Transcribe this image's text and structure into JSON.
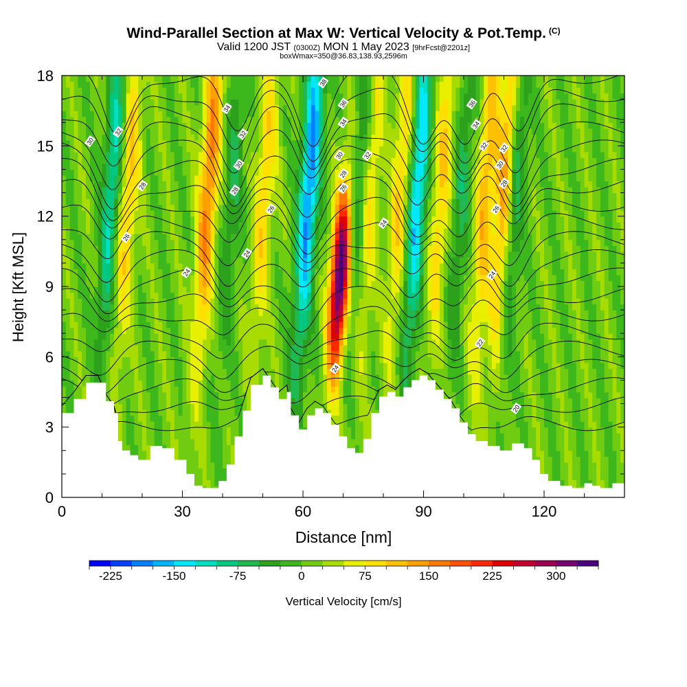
{
  "title": "Wind-Parallel Section at Max W: Vertical Velocity & Pot.Temp.",
  "title_mark": "(C)",
  "subtitle_main_a": "Valid 1200 JST",
  "subtitle_small_a": "(0300Z)",
  "subtitle_main_b": "MON 1 May 2023",
  "subtitle_small_b": "[9hrFcst@2201z]",
  "subtitle2": "boxWmax=350@36.83,138.93,2596m",
  "chart_data": {
    "type": "heatmap",
    "xlabel": "Distance [nm]",
    "ylabel": "Height [Kft MSL]",
    "xlim": [
      0,
      140
    ],
    "ylim": [
      0,
      18
    ],
    "x_ticks": [
      0,
      30,
      60,
      90,
      120
    ],
    "y_ticks": [
      0,
      3,
      6,
      9,
      12,
      15,
      18
    ],
    "colorbar": {
      "label": "Vertical Velocity [cm/s]",
      "min": -250,
      "max": 350,
      "step": 25,
      "tick_values": [
        -225,
        -150,
        -75,
        0,
        75,
        150,
        225,
        300
      ],
      "tick_labels": [
        "-225",
        "-150",
        "-75",
        "0",
        "75",
        "150",
        "225",
        "300"
      ],
      "colors": [
        "#0000ff",
        "#0040ff",
        "#0080ff",
        "#00b4ff",
        "#00e8ff",
        "#00e0c0",
        "#00c880",
        "#20b850",
        "#2ca21c",
        "#3cb81c",
        "#70cc10",
        "#a8dc00",
        "#e8f000",
        "#ffe000",
        "#ffc000",
        "#ffa000",
        "#ff7800",
        "#ff5000",
        "#ff2800",
        "#e00000",
        "#c00030",
        "#9c0050",
        "#780070",
        "#4c0080"
      ]
    },
    "contour_field": "Potential Temperature",
    "contour_labels": [
      "20",
      "22",
      "24",
      "26",
      "28",
      "30",
      "32",
      "34",
      "36",
      "38"
    ],
    "updraft_cores": [
      {
        "x": 14,
        "w": 100
      },
      {
        "x": 34,
        "w": 150
      },
      {
        "x": 48,
        "w": 85
      },
      {
        "x": 68,
        "w": 350
      },
      {
        "x": 74,
        "w": 100
      },
      {
        "x": 82,
        "w": 95
      },
      {
        "x": 92,
        "w": 90
      },
      {
        "x": 103,
        "w": 110
      },
      {
        "x": 108,
        "w": 150
      }
    ],
    "downdraft_cores": [
      {
        "x": 10,
        "w": -120
      },
      {
        "x": 40,
        "w": -60
      },
      {
        "x": 59,
        "w": -200
      },
      {
        "x": 72,
        "w": -90
      },
      {
        "x": 86,
        "w": -170
      },
      {
        "x": 97,
        "w": -70
      },
      {
        "x": 110,
        "w": -110
      }
    ],
    "terrain_kft": [
      [
        0,
        3.6
      ],
      [
        3,
        4.2
      ],
      [
        6,
        4.9
      ],
      [
        9,
        4.9
      ],
      [
        11,
        4.1
      ],
      [
        13,
        3.6
      ],
      [
        14,
        2.4
      ],
      [
        15,
        2.0
      ],
      [
        17,
        1.8
      ],
      [
        19,
        1.6
      ],
      [
        22,
        2.2
      ],
      [
        25,
        2.1
      ],
      [
        28,
        1.6
      ],
      [
        31,
        1.0
      ],
      [
        33,
        0.5
      ],
      [
        35,
        0.4
      ],
      [
        37,
        0.4
      ],
      [
        39,
        0.7
      ],
      [
        41,
        1.4
      ],
      [
        43,
        2.6
      ],
      [
        45,
        3.7
      ],
      [
        47,
        4.8
      ],
      [
        50,
        5.2
      ],
      [
        52,
        4.7
      ],
      [
        54,
        4.2
      ],
      [
        56,
        4.5
      ],
      [
        57,
        3.5
      ],
      [
        59,
        2.9
      ],
      [
        61,
        3.5
      ],
      [
        63,
        3.8
      ],
      [
        65,
        3.6
      ],
      [
        67,
        3.1
      ],
      [
        69,
        2.6
      ],
      [
        71,
        2.1
      ],
      [
        73,
        1.9
      ],
      [
        75,
        2.5
      ],
      [
        77,
        3.6
      ],
      [
        79,
        4.3
      ],
      [
        81,
        4.5
      ],
      [
        83,
        4.3
      ],
      [
        85,
        4.7
      ],
      [
        87,
        5.0
      ],
      [
        89,
        5.2
      ],
      [
        91,
        5.0
      ],
      [
        93,
        4.6
      ],
      [
        95,
        4.2
      ],
      [
        97,
        3.8
      ],
      [
        99,
        3.2
      ],
      [
        101,
        2.7
      ],
      [
        103,
        2.4
      ],
      [
        106,
        2.2
      ],
      [
        109,
        2.0
      ],
      [
        112,
        2.3
      ],
      [
        115,
        2.1
      ],
      [
        117,
        1.6
      ],
      [
        119,
        1.0
      ],
      [
        121,
        0.7
      ],
      [
        124,
        0.5
      ],
      [
        127,
        0.4
      ],
      [
        130,
        0.6
      ],
      [
        132,
        0.5
      ],
      [
        134,
        0.4
      ],
      [
        137,
        0.6
      ],
      [
        140,
        0.8
      ]
    ]
  }
}
